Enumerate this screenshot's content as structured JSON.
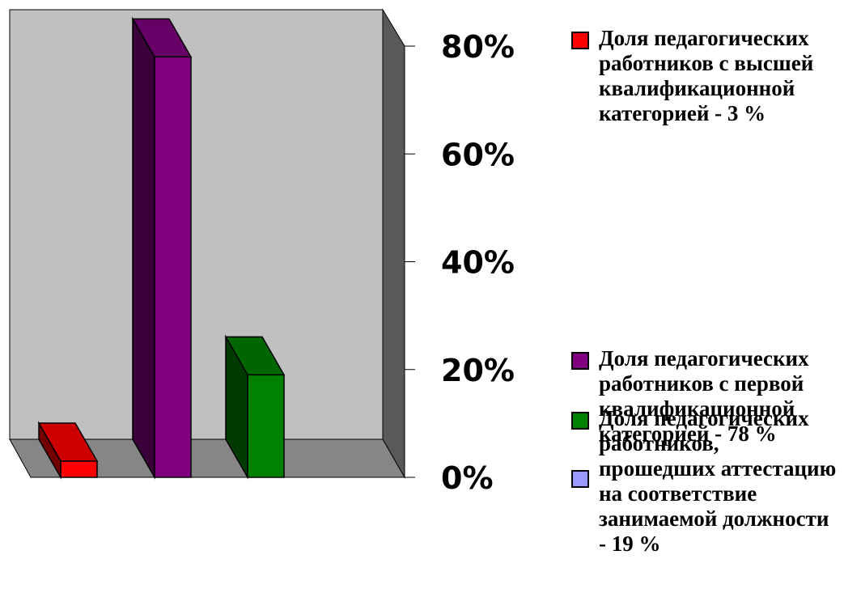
{
  "chart_data": {
    "type": "bar",
    "style": "3d",
    "categories": [
      "Доля педагогических работников с высшей квалификационной категорией - 3 %",
      "Доля педагогических работников с первой квалификационной категорией - 78 %",
      "Доля педагогических работников, прошедших аттестацию на соответствие занимаемой должности - 19 %"
    ],
    "values": [
      3,
      78,
      19
    ],
    "colors": [
      "#ff0000",
      "#800080",
      "#008000"
    ],
    "ylim": [
      0,
      80
    ],
    "yticks": [
      {
        "value": 0,
        "label": "0%"
      },
      {
        "value": 20,
        "label": "20%"
      },
      {
        "value": 40,
        "label": "40%"
      },
      {
        "value": 60,
        "label": "60%"
      },
      {
        "value": 80,
        "label": "80%"
      }
    ],
    "grid": false,
    "legend_position": "right",
    "legend": [
      {
        "label": "Доля педагогических работников с высшей квалификационной категорией - 3 %",
        "color": "#ff0000"
      },
      {
        "label": "Доля педагогических работников с первой квалификационной категорией - 78 %",
        "color": "#800080"
      },
      {
        "label": "Доля педагогических работников, прошедших аттестацию на соответствие занимаемой должности - 19 %",
        "color": "#008000"
      },
      {
        "label": "",
        "color": "#9999ff"
      }
    ]
  }
}
